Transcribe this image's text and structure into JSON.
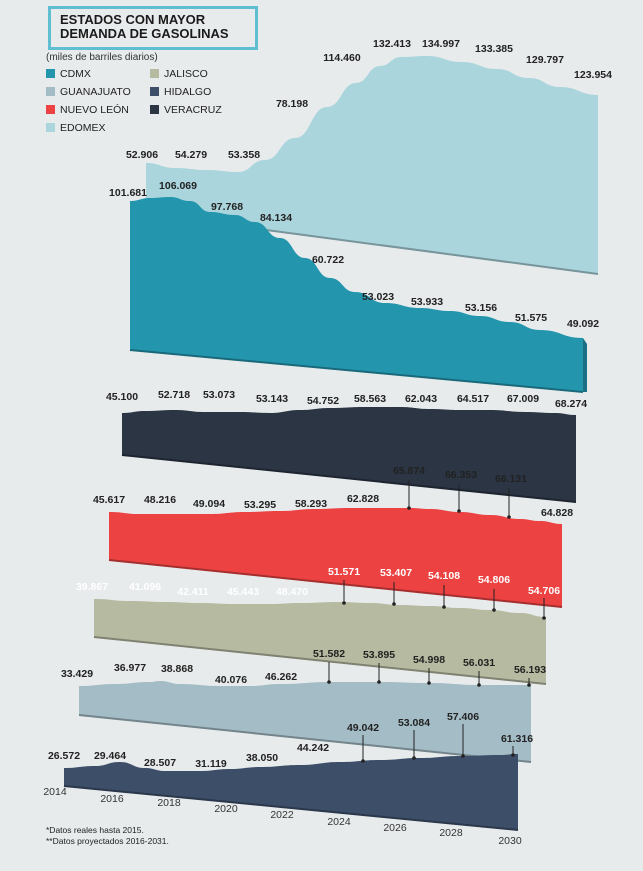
{
  "title": {
    "line1": "ESTADOS CON MAYOR",
    "line2": "DEMANDA DE GASOLINAS"
  },
  "subtitle": "(miles de barriles diarios)",
  "notes": [
    "*Datos reales hasta 2015.",
    "**Datos proyectados 2016-2031."
  ],
  "chart_data": {
    "type": "area",
    "x": [
      2014,
      2016,
      2018,
      2020,
      2022,
      2024,
      2026,
      2028,
      2030
    ],
    "x_tick_labels": [
      "2014",
      "2016",
      "2018",
      "2020",
      "2022",
      "2024",
      "2026",
      "2028",
      "2030"
    ],
    "series": [
      {
        "name": "EDOMEX",
        "color": "#aad5dd",
        "labels": [
          "52.906",
          "54.279",
          "53.358",
          "78.198",
          "114.460",
          "132.413",
          "134.997",
          "133.385",
          "129.797",
          "123.954"
        ]
      },
      {
        "name": "CDMX",
        "color": "#2396ae",
        "labels": [
          "101.681",
          "106.069",
          "97.768",
          "84.134",
          "60.722",
          "53.023",
          "53.933",
          "53.156",
          "51.575",
          "49.092"
        ]
      },
      {
        "name": "VERACRUZ",
        "color": "#2b3544",
        "labels": [
          "45.100",
          "52.718",
          "53.073",
          "53.143",
          "54.752",
          "58.563",
          "62.043",
          "64.517",
          "67.009",
          "68.274"
        ]
      },
      {
        "name": "NUEVO LEÓN",
        "color": "#ec4242",
        "labels": [
          "45.617",
          "48.216",
          "49.094",
          "53.295",
          "58.293",
          "62.828",
          "65.874",
          "66.353",
          "66.131",
          "64.828"
        ]
      },
      {
        "name": "JALISCO",
        "color": "#b6baa0",
        "labels": [
          "39.867",
          "41.096",
          "42.411",
          "45.443",
          "48.470",
          "51.571",
          "53.407",
          "54.108",
          "54.806",
          "54.706"
        ]
      },
      {
        "name": "GUANAJUATO",
        "color": "#a4bcc6",
        "labels": [
          "33.429",
          "36.977",
          "38.868",
          "40.076",
          "46.262",
          "51.582",
          "53.895",
          "54.998",
          "56.031",
          "56.193"
        ]
      },
      {
        "name": "HIDALGO",
        "color": "#3d4e69",
        "labels": [
          "26.572",
          "29.464",
          "28.507",
          "31.119",
          "38.050",
          "44.242",
          "49.042",
          "53.084",
          "57.406",
          "61.316"
        ]
      }
    ],
    "legend": [
      "CDMX",
      "JALISCO",
      "GUANAJUATO",
      "HIDALGO",
      "NUEVO LEÓN",
      "VERACRUZ",
      "EDOMEX"
    ],
    "legend_placement": "top-left"
  }
}
